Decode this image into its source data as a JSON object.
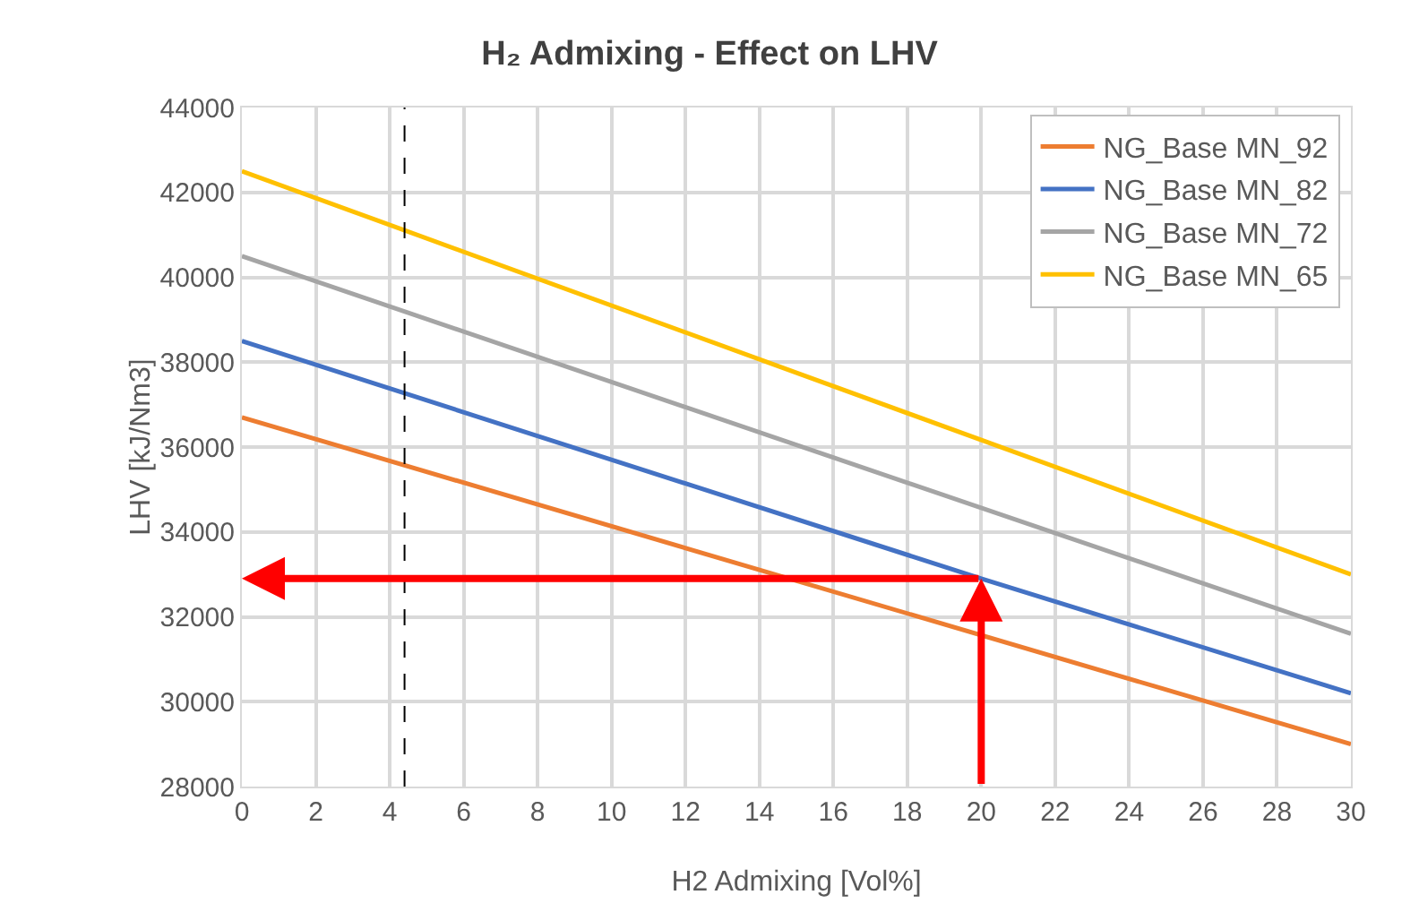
{
  "chart_data": {
    "type": "line",
    "title": "H₂ Admixing - Effect on LHV",
    "xlabel": "H2 Admixing [Vol%]",
    "ylabel": "LHV [kJ/Nm3]",
    "series": [
      {
        "name": "NG_Base MN_92",
        "color": "#ed7d31",
        "x": [
          0,
          30
        ],
        "values": [
          36700,
          29000
        ]
      },
      {
        "name": "NG_Base MN_82",
        "color": "#4472c4",
        "x": [
          0,
          20,
          30
        ],
        "values": [
          38500,
          32900,
          30200
        ]
      },
      {
        "name": "NG_Base MN_72",
        "color": "#a5a5a5",
        "x": [
          0,
          30
        ],
        "values": [
          40500,
          31600
        ]
      },
      {
        "name": "NG_Base MN_65",
        "color": "#ffc000",
        "x": [
          0,
          30
        ],
        "values": [
          42500,
          33000
        ]
      }
    ],
    "xlim": [
      0,
      30
    ],
    "xticks": [
      0,
      2,
      4,
      6,
      8,
      10,
      12,
      14,
      16,
      18,
      20,
      22,
      24,
      26,
      28,
      30
    ],
    "ylim": [
      28000,
      44000
    ],
    "yticks": [
      28000,
      30000,
      32000,
      34000,
      36000,
      38000,
      40000,
      42000,
      44000
    ],
    "ref_lines": [
      {
        "axis": "x",
        "value": 4.4,
        "color": "#000000",
        "line_style": "dashed"
      }
    ],
    "grid": true,
    "legend": "top right",
    "marker": "none",
    "line_style": "solid"
  }
}
